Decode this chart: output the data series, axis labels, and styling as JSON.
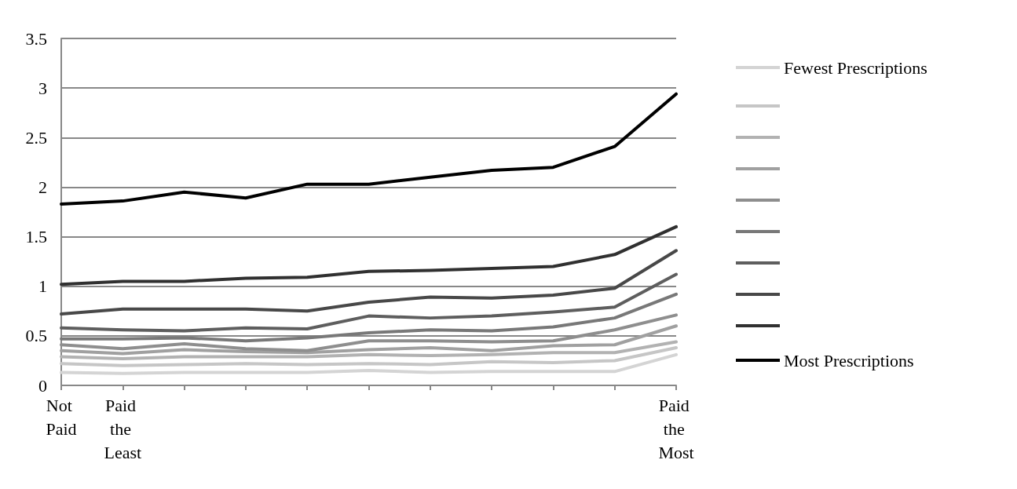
{
  "chart_data": {
    "type": "line",
    "categories": [
      "Not Paid",
      "Paid the Least",
      null,
      null,
      null,
      null,
      null,
      null,
      null,
      null,
      "Paid the Most"
    ],
    "ylim": [
      0,
      3.5
    ],
    "yticks": [
      0,
      0.5,
      1,
      1.5,
      2,
      2.5,
      3,
      3.5
    ],
    "grid": "y",
    "legend": "right",
    "marker": "none",
    "line_style": "solid",
    "series": [
      {
        "name": "Fewest Prescriptions",
        "color": "#d4d4d4",
        "values": [
          0.13,
          0.12,
          0.13,
          0.13,
          0.13,
          0.15,
          0.13,
          0.14,
          0.14,
          0.14,
          0.31
        ]
      },
      {
        "color": "#c6c6c6",
        "values": [
          0.22,
          0.2,
          0.21,
          0.22,
          0.21,
          0.22,
          0.21,
          0.24,
          0.23,
          0.25,
          0.38
        ]
      },
      {
        "color": "#b2b2b2",
        "values": [
          0.29,
          0.27,
          0.29,
          0.29,
          0.29,
          0.31,
          0.3,
          0.31,
          0.33,
          0.33,
          0.44
        ]
      },
      {
        "color": "#a0a0a0",
        "values": [
          0.35,
          0.32,
          0.36,
          0.34,
          0.33,
          0.36,
          0.38,
          0.35,
          0.4,
          0.41,
          0.6
        ]
      },
      {
        "color": "#8e8e8e",
        "values": [
          0.41,
          0.37,
          0.42,
          0.37,
          0.35,
          0.45,
          0.45,
          0.44,
          0.45,
          0.56,
          0.71
        ]
      },
      {
        "color": "#787878",
        "values": [
          0.47,
          0.47,
          0.48,
          0.45,
          0.48,
          0.53,
          0.56,
          0.55,
          0.59,
          0.68,
          0.92
        ]
      },
      {
        "color": "#5e5e5e",
        "values": [
          0.58,
          0.56,
          0.55,
          0.58,
          0.57,
          0.7,
          0.68,
          0.7,
          0.74,
          0.79,
          1.12
        ]
      },
      {
        "color": "#484848",
        "values": [
          0.72,
          0.77,
          0.77,
          0.77,
          0.75,
          0.84,
          0.89,
          0.88,
          0.91,
          0.98,
          1.36
        ]
      },
      {
        "color": "#303030",
        "values": [
          1.02,
          1.05,
          1.05,
          1.08,
          1.09,
          1.15,
          1.16,
          1.18,
          1.2,
          1.32,
          1.6
        ]
      },
      {
        "name": "Most Prescriptions",
        "color": "#000000",
        "values": [
          1.83,
          1.86,
          1.95,
          1.89,
          2.03,
          2.03,
          2.1,
          2.17,
          2.2,
          2.41,
          2.94
        ]
      }
    ]
  }
}
